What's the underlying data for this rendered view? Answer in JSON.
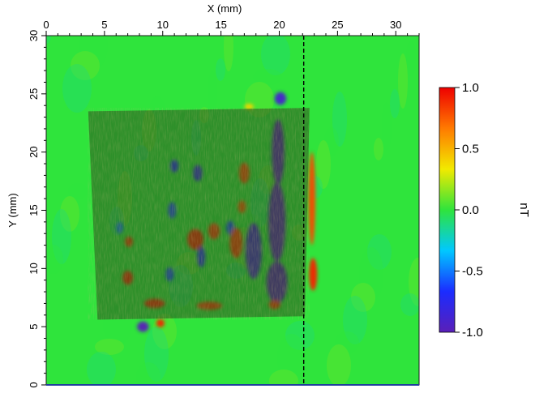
{
  "chart_data": {
    "type": "heatmap",
    "title": "",
    "xlabel": "X (mm)",
    "ylabel": "Y (mm)",
    "xlim": [
      0,
      32
    ],
    "ylim": [
      0,
      30
    ],
    "x_ticks": [
      0,
      5,
      10,
      15,
      20,
      25,
      30
    ],
    "y_ticks": [
      0,
      5,
      10,
      15,
      20,
      25,
      30
    ],
    "x_tick_labels": [
      "0",
      "5",
      "10",
      "15",
      "20",
      "25",
      "30"
    ],
    "y_tick_labels": [
      "0",
      "5",
      "10",
      "15",
      "20",
      "25",
      "30"
    ],
    "x_axis_position": "top",
    "grid": false,
    "colorbar": {
      "label": "nT",
      "range": [
        -1.0,
        1.0
      ],
      "ticks": [
        1.0,
        0.5,
        0.0,
        -0.5,
        -1.0
      ],
      "tick_labels": [
        "1.0",
        "0.5",
        "0.0",
        "-0.5",
        "-1.0"
      ],
      "colormap": [
        "#5a1fb8",
        "#1b2cff",
        "#00c8ff",
        "#2fe43c",
        "#f2ea00",
        "#ff7a00",
        "#ee0000"
      ]
    },
    "sample_overlay": {
      "corners": [
        [
          3.6,
          23.5
        ],
        [
          22.6,
          23.8
        ],
        [
          22.2,
          5.9
        ],
        [
          4.4,
          5.6
        ]
      ]
    },
    "vertical_dashed_line_x": 22.1,
    "background_value": 0.0,
    "features": [
      {
        "x": 19.9,
        "y": 20.0,
        "sx": 0.55,
        "sy": 2.8,
        "value": -1.0
      },
      {
        "x": 19.8,
        "y": 14.0,
        "sx": 0.75,
        "sy": 3.4,
        "value": -1.0
      },
      {
        "x": 19.8,
        "y": 8.8,
        "sx": 0.9,
        "sy": 1.8,
        "value": -1.0
      },
      {
        "x": 17.8,
        "y": 11.5,
        "sx": 0.7,
        "sy": 2.4,
        "value": -0.9
      },
      {
        "x": 20.1,
        "y": 24.6,
        "sx": 0.5,
        "sy": 0.55,
        "value": -0.9
      },
      {
        "x": 8.3,
        "y": 5.0,
        "sx": 0.5,
        "sy": 0.45,
        "value": -1.0
      },
      {
        "x": 13.0,
        "y": 18.2,
        "sx": 0.4,
        "sy": 0.7,
        "value": -0.8
      },
      {
        "x": 11.0,
        "y": 18.8,
        "sx": 0.35,
        "sy": 0.55,
        "value": -0.7
      },
      {
        "x": 10.8,
        "y": 15.0,
        "sx": 0.35,
        "sy": 0.7,
        "value": -0.6
      },
      {
        "x": 10.6,
        "y": 9.5,
        "sx": 0.35,
        "sy": 0.6,
        "value": -0.6
      },
      {
        "x": 13.3,
        "y": 11.0,
        "sx": 0.35,
        "sy": 0.9,
        "value": -0.7
      },
      {
        "x": 15.8,
        "y": 13.5,
        "sx": 0.35,
        "sy": 0.6,
        "value": -0.6
      },
      {
        "x": 6.3,
        "y": 13.5,
        "sx": 0.3,
        "sy": 0.5,
        "value": -0.5
      },
      {
        "x": 22.8,
        "y": 16.0,
        "sx": 0.3,
        "sy": 4.0,
        "value": 0.8
      },
      {
        "x": 22.9,
        "y": 9.5,
        "sx": 0.35,
        "sy": 1.4,
        "value": 0.9
      },
      {
        "x": 17.0,
        "y": 18.2,
        "sx": 0.45,
        "sy": 0.9,
        "value": 0.8
      },
      {
        "x": 16.3,
        "y": 12.2,
        "sx": 0.55,
        "sy": 1.3,
        "value": 0.85
      },
      {
        "x": 14.4,
        "y": 13.2,
        "sx": 0.5,
        "sy": 0.7,
        "value": 0.85
      },
      {
        "x": 12.8,
        "y": 12.5,
        "sx": 0.7,
        "sy": 0.9,
        "value": 0.9
      },
      {
        "x": 7.0,
        "y": 9.2,
        "sx": 0.45,
        "sy": 0.6,
        "value": 0.9
      },
      {
        "x": 7.1,
        "y": 12.3,
        "sx": 0.35,
        "sy": 0.45,
        "value": 0.85
      },
      {
        "x": 9.3,
        "y": 7.0,
        "sx": 0.9,
        "sy": 0.4,
        "value": 0.9
      },
      {
        "x": 14.0,
        "y": 6.8,
        "sx": 1.1,
        "sy": 0.35,
        "value": 0.85
      },
      {
        "x": 9.8,
        "y": 5.3,
        "sx": 0.35,
        "sy": 0.35,
        "value": 0.9
      },
      {
        "x": 19.6,
        "y": 6.9,
        "sx": 0.5,
        "sy": 0.4,
        "value": 0.85
      },
      {
        "x": 16.8,
        "y": 15.3,
        "sx": 0.35,
        "sy": 0.55,
        "value": 0.75
      },
      {
        "x": 17.4,
        "y": 23.9,
        "sx": 0.4,
        "sy": 0.25,
        "value": 0.4
      }
    ]
  }
}
